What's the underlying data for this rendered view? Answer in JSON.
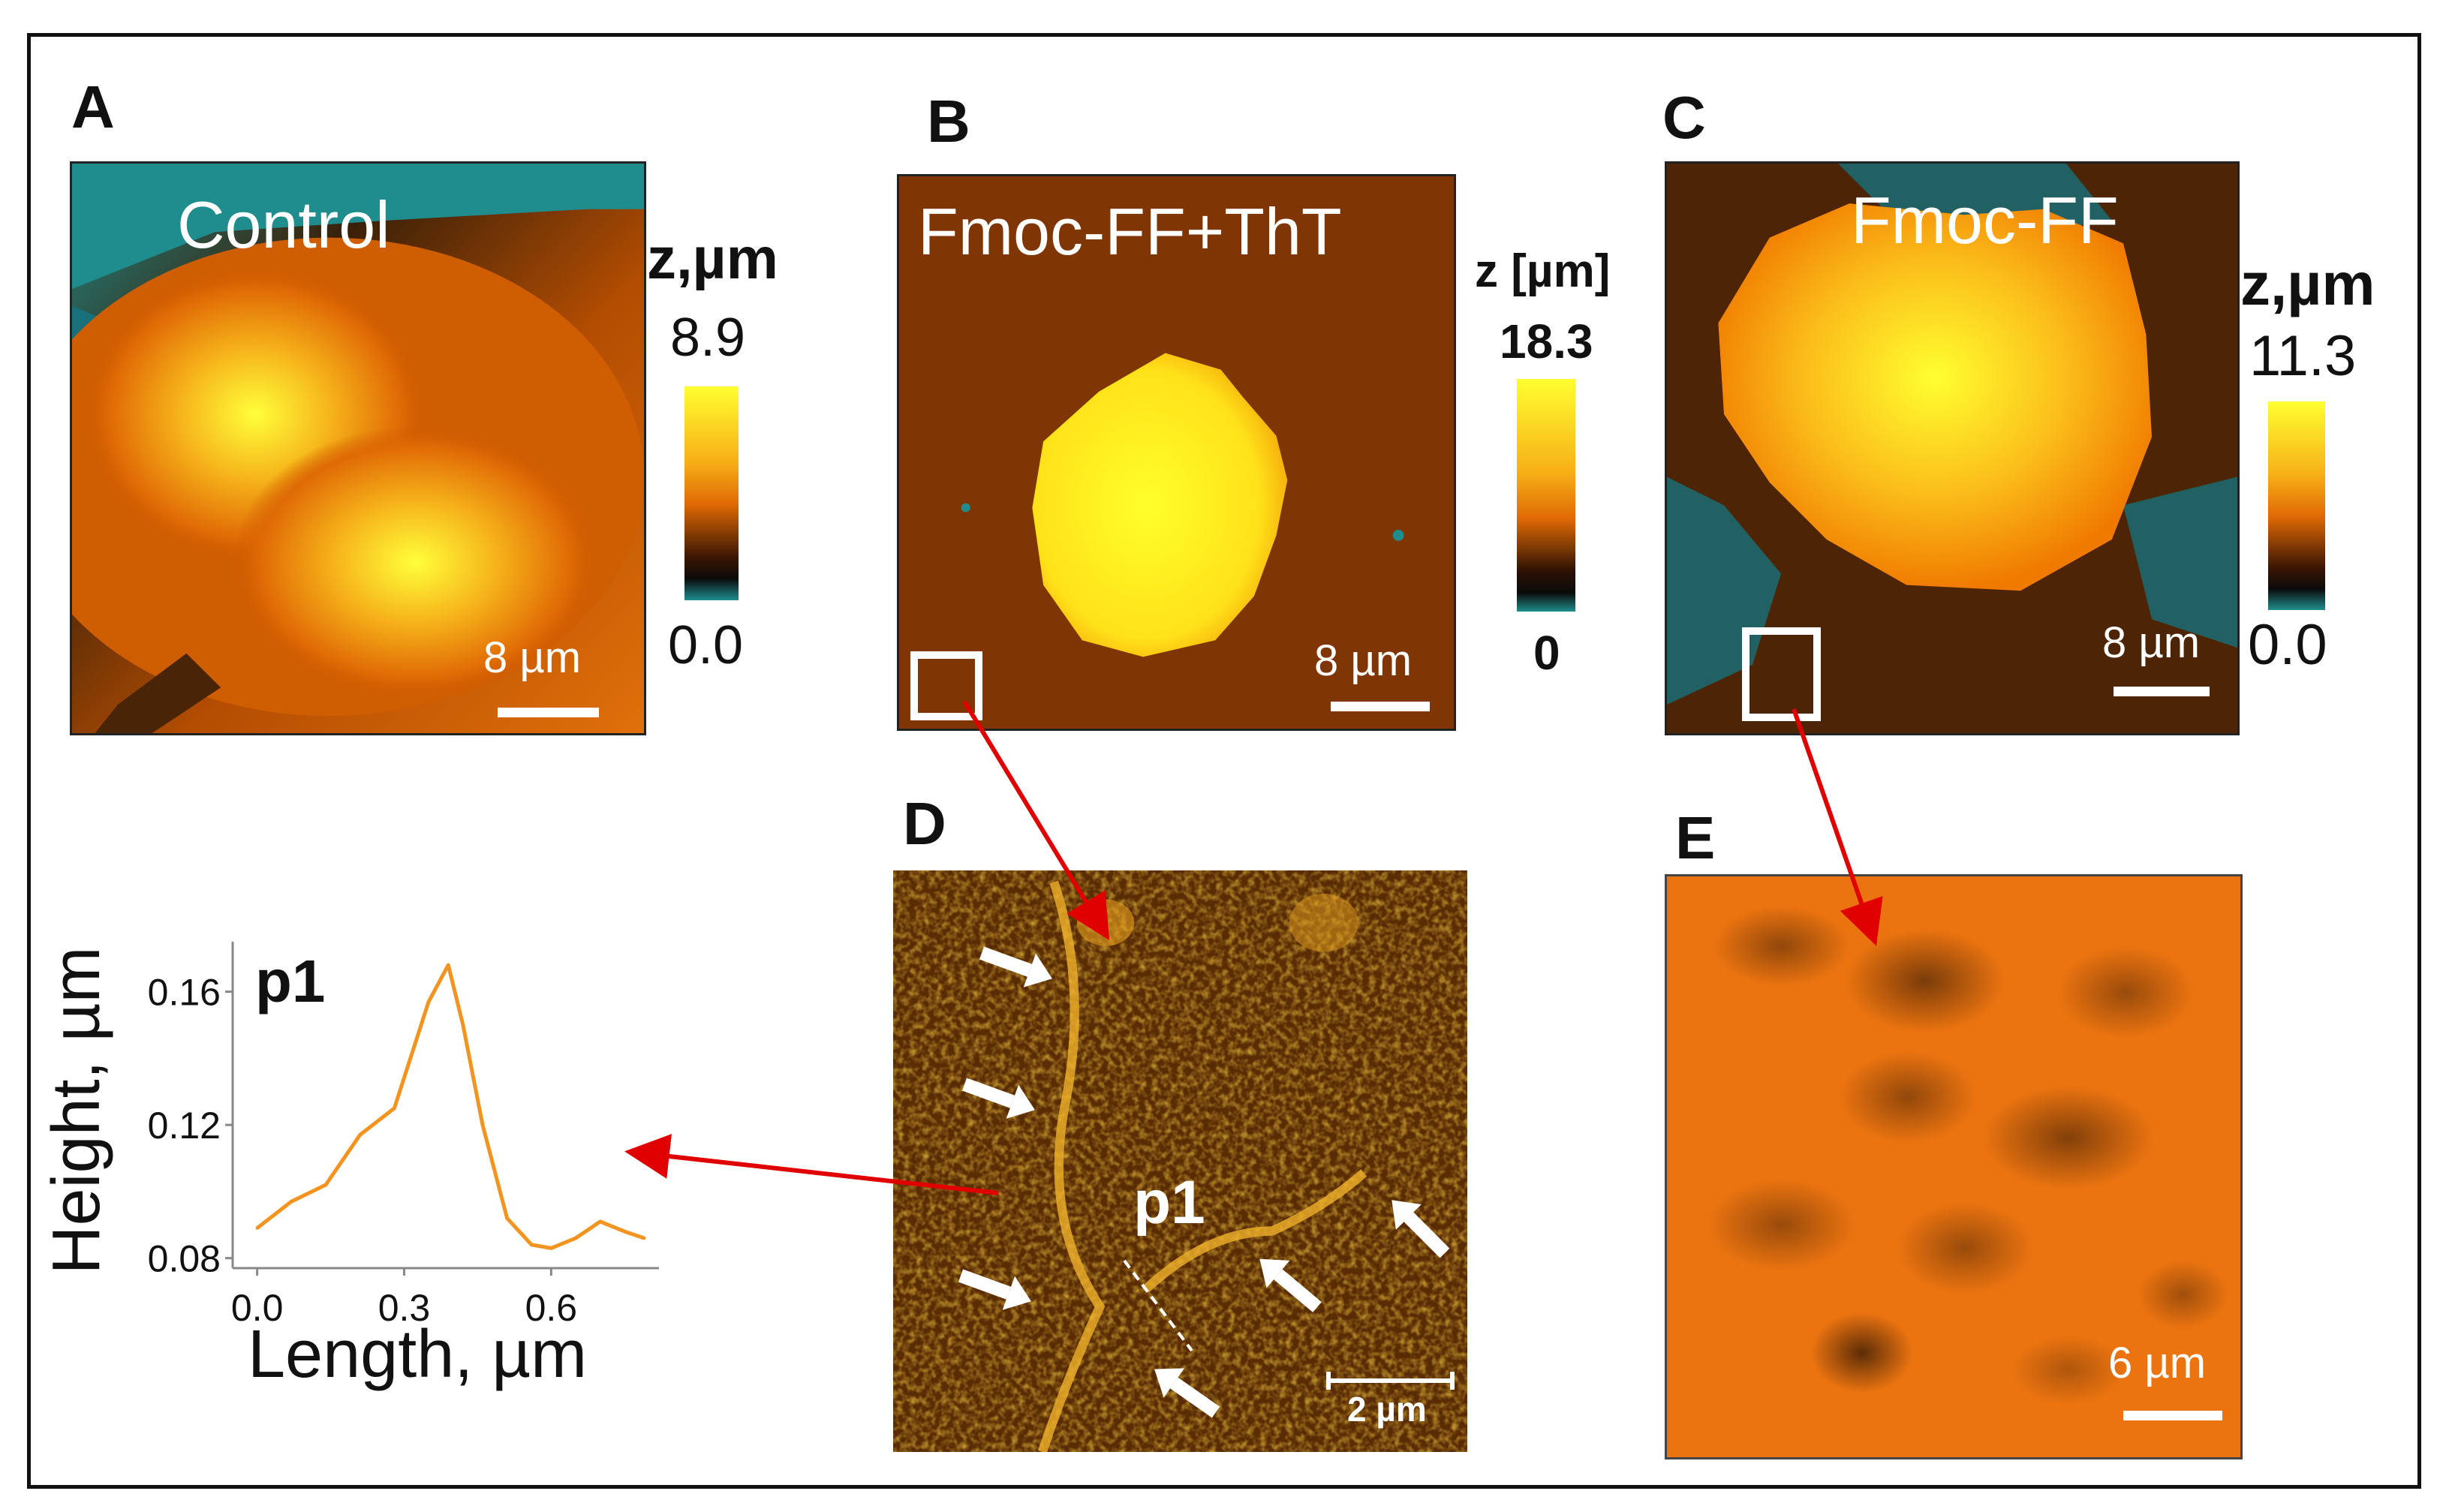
{
  "panels": {
    "A": {
      "letter": "A",
      "title": "Control",
      "colorbar_label": "z,µm",
      "max": "8.9",
      "min": "0.0",
      "scale": "8 µm"
    },
    "B": {
      "letter": "B",
      "title": "Fmoc-FF+ThT",
      "colorbar_label": "z [µm]",
      "max": "18.3",
      "min": "0",
      "scale": "8 µm"
    },
    "C": {
      "letter": "C",
      "title": "Fmoc-FF",
      "colorbar_label": "z,µm",
      "max": "11.3",
      "min": "0.0",
      "scale": "8 µm"
    },
    "D": {
      "letter": "D",
      "label": "p1",
      "scale": "2 µm"
    },
    "E": {
      "letter": "E",
      "scale": "6 µm"
    }
  },
  "colors": {
    "afm_high": "#ffff2a",
    "afm_mid": "#f07a00",
    "afm_low": "#1a0a00",
    "afm_base": "#1f8d8d",
    "arrow": "#e00000",
    "profile": "#f39420"
  },
  "chart_data": {
    "type": "line",
    "title": "p1",
    "xlabel": "Length, µm",
    "ylabel": "Height, µm",
    "xticks": [
      "0.0",
      "0.3",
      "0.6"
    ],
    "yticks": [
      "0.08",
      "0.12",
      "0.16"
    ],
    "xlim": [
      -0.05,
      0.82
    ],
    "ylim": [
      0.077,
      0.175
    ],
    "x": [
      0.0,
      0.07,
      0.14,
      0.21,
      0.28,
      0.35,
      0.39,
      0.42,
      0.46,
      0.51,
      0.56,
      0.6,
      0.65,
      0.7,
      0.75,
      0.79
    ],
    "y": [
      0.089,
      0.097,
      0.102,
      0.117,
      0.125,
      0.157,
      0.168,
      0.15,
      0.12,
      0.092,
      0.084,
      0.083,
      0.086,
      0.091,
      0.088,
      0.086
    ]
  }
}
